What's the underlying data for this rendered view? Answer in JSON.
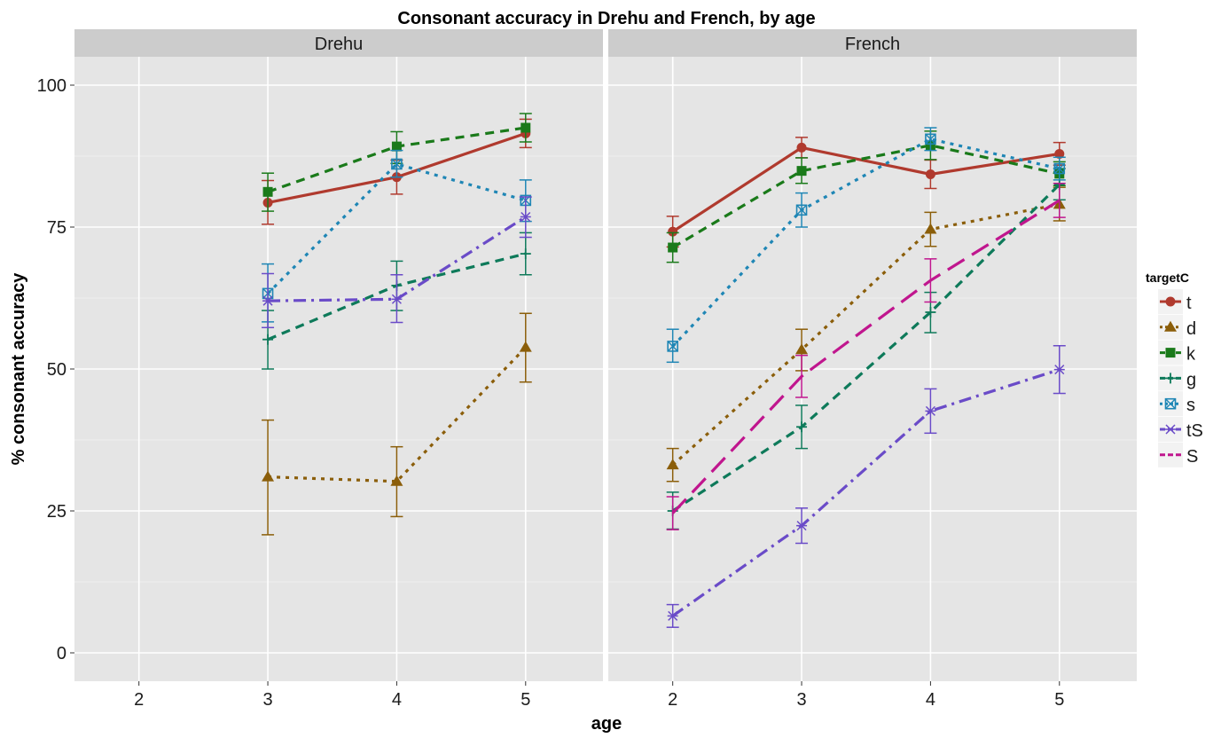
{
  "chart_data": {
    "type": "line",
    "title": "Consonant accuracy in Drehu and French, by age",
    "xlabel": "age",
    "ylabel": "% consonant accuracy",
    "x_ticks": [
      2,
      3,
      4,
      5
    ],
    "y_ticks": [
      0,
      25,
      50,
      75,
      100
    ],
    "xlim": [
      1.5,
      5.6
    ],
    "ylim": [
      -5,
      105
    ],
    "grid": true,
    "legend_title": "targetC",
    "legend_position": "right",
    "series_styles": [
      {
        "name": "t",
        "color": "#b03a2e",
        "dash": "solid",
        "marker": "circle"
      },
      {
        "name": "d",
        "color": "#8b5e0a",
        "dash": "dotted",
        "marker": "triangle"
      },
      {
        "name": "k",
        "color": "#1a7a1a",
        "dash": "dashed",
        "marker": "square"
      },
      {
        "name": "g",
        "color": "#0e7a5a",
        "dash": "dashed",
        "marker": "plus"
      },
      {
        "name": "s",
        "color": "#1f86b5",
        "dash": "dotted",
        "marker": "boxx"
      },
      {
        "name": "tS",
        "color": "#6a4bc8",
        "dash": "dashdot",
        "marker": "asterisk"
      },
      {
        "name": "S",
        "color": "#c0168e",
        "dash": "longdash",
        "marker": "none"
      }
    ],
    "panels": [
      {
        "name": "Drehu",
        "series": [
          {
            "name": "t",
            "x": [
              3,
              4,
              5
            ],
            "y": [
              79.3,
              83.8,
              91.5
            ],
            "lo": [
              75.5,
              80.8,
              89.0
            ],
            "hi": [
              83.2,
              86.8,
              94.0
            ]
          },
          {
            "name": "d",
            "x": [
              3,
              4,
              5
            ],
            "y": [
              31.0,
              30.2,
              53.8
            ],
            "lo": [
              20.8,
              24.0,
              47.7
            ],
            "hi": [
              41.0,
              36.3,
              59.8
            ]
          },
          {
            "name": "k",
            "x": [
              3,
              4,
              5
            ],
            "y": [
              81.2,
              89.2,
              92.5
            ],
            "lo": [
              77.8,
              86.2,
              90.0
            ],
            "hi": [
              84.5,
              91.8,
              95.0
            ]
          },
          {
            "name": "g",
            "x": [
              3,
              4,
              5
            ],
            "y": [
              55.2,
              64.7,
              70.3
            ],
            "lo": [
              50.0,
              60.3,
              66.6
            ],
            "hi": [
              60.3,
              69.0,
              74.0
            ]
          },
          {
            "name": "s",
            "x": [
              3,
              4,
              5
            ],
            "y": [
              63.3,
              86.1,
              79.7
            ],
            "lo": [
              58.3,
              83.8,
              76.0
            ],
            "hi": [
              68.5,
              88.5,
              83.3
            ]
          },
          {
            "name": "tS",
            "x": [
              3,
              4,
              5
            ],
            "y": [
              62.0,
              62.3,
              76.8
            ],
            "lo": [
              57.3,
              58.2,
              73.2
            ],
            "hi": [
              66.8,
              66.6,
              80.3
            ]
          }
        ]
      },
      {
        "name": "French",
        "series": [
          {
            "name": "t",
            "x": [
              2,
              3,
              4,
              5
            ],
            "y": [
              74.2,
              89.0,
              84.3,
              87.9
            ],
            "lo": [
              71.5,
              87.2,
              81.8,
              85.9
            ],
            "hi": [
              76.9,
              90.8,
              86.8,
              89.9
            ]
          },
          {
            "name": "d",
            "x": [
              2,
              3,
              4,
              5
            ],
            "y": [
              33.1,
              53.4,
              74.6,
              79.0
            ],
            "lo": [
              30.2,
              49.7,
              71.6,
              76.1
            ],
            "hi": [
              36.0,
              57.0,
              77.6,
              82.0
            ]
          },
          {
            "name": "k",
            "x": [
              2,
              3,
              4,
              5
            ],
            "y": [
              71.4,
              84.9,
              89.4,
              84.4
            ],
            "lo": [
              68.8,
              82.7,
              86.9,
              82.3
            ],
            "hi": [
              74.0,
              87.2,
              91.9,
              86.5
            ]
          },
          {
            "name": "g",
            "x": [
              2,
              3,
              4,
              5
            ],
            "y": [
              25.0,
              39.8,
              60.0,
              82.5
            ],
            "lo": [
              21.8,
              36.0,
              56.4,
              79.8
            ],
            "hi": [
              28.3,
              43.6,
              63.5,
              85.3
            ]
          },
          {
            "name": "s",
            "x": [
              2,
              3,
              4,
              5
            ],
            "y": [
              54.0,
              78.0,
              90.5,
              85.3
            ],
            "lo": [
              51.2,
              75.0,
              88.5,
              83.3
            ],
            "hi": [
              57.0,
              81.0,
              92.5,
              87.3
            ]
          },
          {
            "name": "tS",
            "x": [
              2,
              3,
              4,
              5
            ],
            "y": [
              6.5,
              22.4,
              42.6,
              49.9
            ],
            "lo": [
              4.5,
              19.3,
              38.7,
              45.7
            ],
            "hi": [
              8.5,
              25.5,
              46.5,
              54.1
            ]
          },
          {
            "name": "S",
            "x": [
              2,
              3,
              4,
              5
            ],
            "y": [
              24.6,
              48.7,
              65.6,
              79.7
            ],
            "lo": [
              21.7,
              45.0,
              61.8,
              76.7
            ],
            "hi": [
              27.5,
              52.4,
              69.4,
              82.7
            ]
          }
        ]
      }
    ]
  }
}
